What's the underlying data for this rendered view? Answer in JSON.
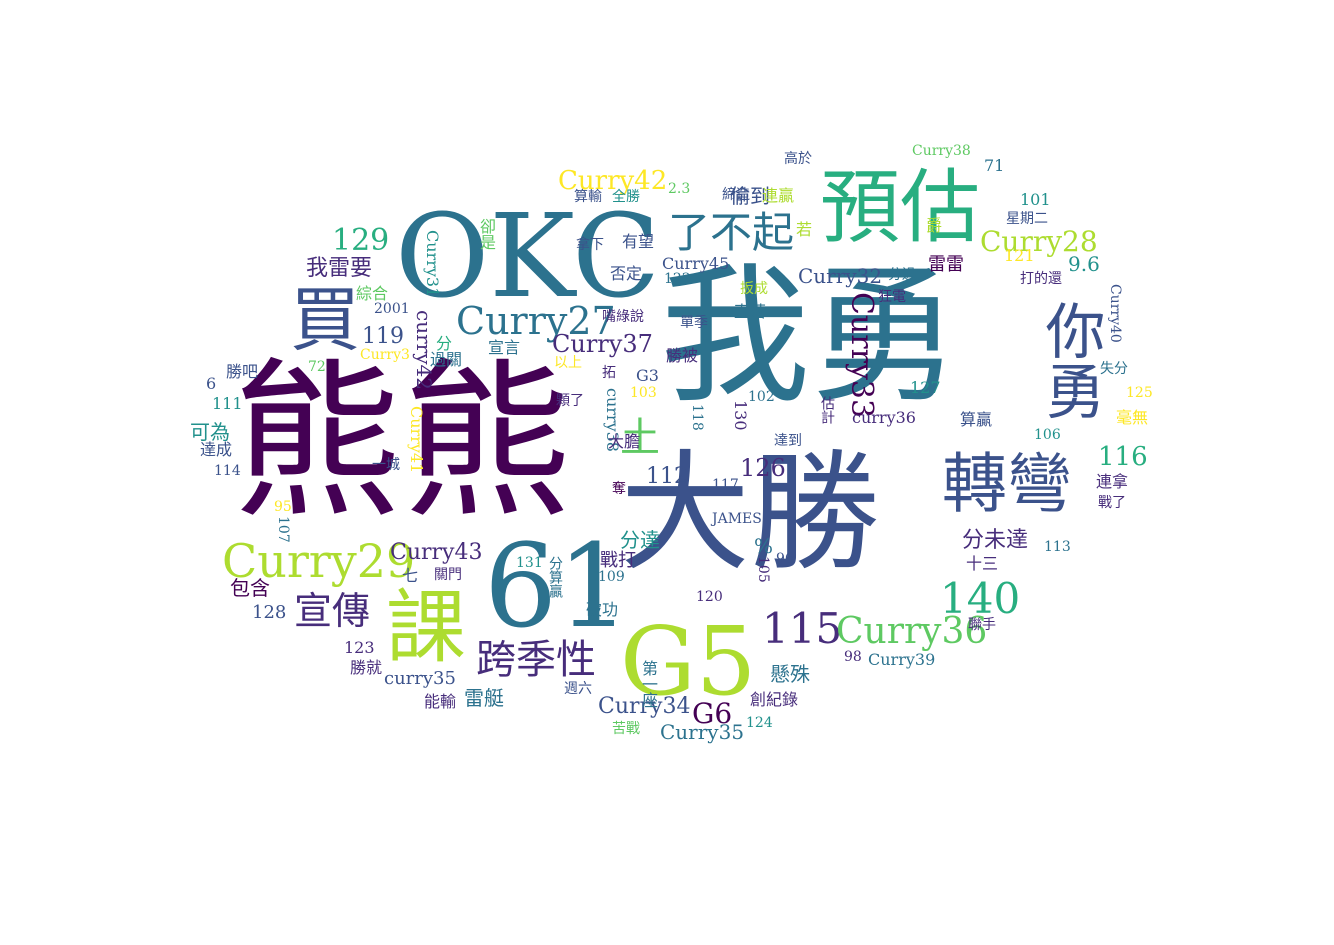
{
  "words": [
    {
      "text": "熊熊",
      "size": 170
    },
    {
      "text": "我勇",
      "size": 150
    },
    {
      "text": "大勝",
      "size": 130
    },
    {
      "text": "OKC",
      "size": 115
    },
    {
      "text": "61",
      "size": 115
    },
    {
      "text": "預估",
      "size": 80
    },
    {
      "text": "G5",
      "size": 95
    },
    {
      "text": "課",
      "size": 80
    },
    {
      "text": "轉彎",
      "size": 65
    },
    {
      "text": "你勇",
      "size": 60
    },
    {
      "text": "買",
      "size": 70
    },
    {
      "text": "Curry29",
      "size": 46
    },
    {
      "text": "Curry27",
      "size": 38
    },
    {
      "text": "140",
      "size": 42
    },
    {
      "text": "115",
      "size": 42
    },
    {
      "text": "了不起",
      "size": 42
    },
    {
      "text": "Curry36",
      "size": 36
    },
    {
      "text": "Curry28",
      "size": 28
    },
    {
      "text": "Curry42",
      "size": 26
    },
    {
      "text": "跨季性",
      "size": 40
    },
    {
      "text": "宣傳",
      "size": 38
    },
    {
      "text": "Curry33",
      "size": 30
    },
    {
      "text": "Curry37",
      "size": 24
    },
    {
      "text": "Curry43",
      "size": 22
    },
    {
      "text": "Curry32",
      "size": 20
    },
    {
      "text": "Curry34",
      "size": 22
    },
    {
      "text": "Curry35",
      "size": 20
    },
    {
      "text": "G6",
      "size": 28
    },
    {
      "text": "129",
      "size": 30
    },
    {
      "text": "126",
      "size": 24
    },
    {
      "text": "116",
      "size": 26
    },
    {
      "text": "119",
      "size": 22
    },
    {
      "text": "112",
      "size": 22
    },
    {
      "text": "我雷要",
      "size": 22
    },
    {
      "text": "分未達",
      "size": 22
    },
    {
      "text": "偷到",
      "size": 20
    },
    {
      "text": "土",
      "size": 40
    },
    {
      "text": "懸殊",
      "size": 20
    },
    {
      "text": "雷艇",
      "size": 20
    },
    {
      "text": "雷雷",
      "size": 18
    },
    {
      "text": "curry35",
      "size": 18
    },
    {
      "text": "curry36",
      "size": 16
    },
    {
      "text": "curry38",
      "size": 16
    },
    {
      "text": "curry42",
      "size": 20
    },
    {
      "text": "Curry41",
      "size": 16
    },
    {
      "text": "Curry31",
      "size": 16
    },
    {
      "text": "Curry40",
      "size": 14
    },
    {
      "text": "Curry45",
      "size": 16
    },
    {
      "text": "Curry39",
      "size": 16
    },
    {
      "text": "Curry38",
      "size": 14
    },
    {
      "text": "Curry3",
      "size": 14
    },
    {
      "text": "9.6",
      "size": 20
    },
    {
      "text": "101",
      "size": 16
    },
    {
      "text": "121",
      "size": 16
    },
    {
      "text": "71",
      "size": 16
    },
    {
      "text": "星期二",
      "size": 14
    },
    {
      "text": "打的還",
      "size": 14
    },
    {
      "text": "失分",
      "size": 14
    },
    {
      "text": "125",
      "size": 14
    },
    {
      "text": "毫無",
      "size": 16
    },
    {
      "text": "106",
      "size": 14
    },
    {
      "text": "連拿",
      "size": 16
    },
    {
      "text": "戰了",
      "size": 14
    },
    {
      "text": "113",
      "size": 14
    },
    {
      "text": "十三",
      "size": 16
    },
    {
      "text": "聯手",
      "size": 14
    },
    {
      "text": "98",
      "size": 14
    },
    {
      "text": "127",
      "size": 16
    },
    {
      "text": "算贏",
      "size": 16
    },
    {
      "text": "狂電",
      "size": 14
    },
    {
      "text": "分過",
      "size": 14
    },
    {
      "text": "高於",
      "size": 14
    },
    {
      "text": "爵",
      "size": 16
    },
    {
      "text": "若",
      "size": 16
    },
    {
      "text": "連贏",
      "size": 16
    },
    {
      "text": "締造",
      "size": 14
    },
    {
      "text": "2.3",
      "size": 14
    },
    {
      "text": "算輸",
      "size": 14
    },
    {
      "text": "全勝",
      "size": 14
    },
    {
      "text": "拿下",
      "size": 14
    },
    {
      "text": "有望",
      "size": 16
    },
    {
      "text": "否定",
      "size": 16
    },
    {
      "text": "122",
      "size": 14
    },
    {
      "text": "扳成",
      "size": 14
    },
    {
      "text": "直落",
      "size": 16
    },
    {
      "text": "單季",
      "size": 14
    },
    {
      "text": "勝被",
      "size": 16
    },
    {
      "text": "嘴綠說",
      "size": 14
    },
    {
      "text": "宣言",
      "size": 16
    },
    {
      "text": "以上",
      "size": 14
    },
    {
      "text": "拓",
      "size": 14
    },
    {
      "text": "G3",
      "size": 16
    },
    {
      "text": "103",
      "size": 14
    },
    {
      "text": "顆了",
      "size": 14
    },
    {
      "text": "130",
      "size": 16
    },
    {
      "text": "102",
      "size": 14
    },
    {
      "text": "估計",
      "size": 14
    },
    {
      "text": "118",
      "size": 14
    },
    {
      "text": "達到",
      "size": 14
    },
    {
      "text": "大膽",
      "size": 16
    },
    {
      "text": "117",
      "size": 14
    },
    {
      "text": "JAMES",
      "size": 14
    },
    {
      "text": "%",
      "size": 20
    },
    {
      "text": "105",
      "size": 14
    },
    {
      "text": "96",
      "size": 14
    },
    {
      "text": "分達",
      "size": 20
    },
    {
      "text": "戰打",
      "size": 18
    },
    {
      "text": "131",
      "size": 14
    },
    {
      "text": "分算贏",
      "size": 14
    },
    {
      "text": "109",
      "size": 14
    },
    {
      "text": "破功",
      "size": 16
    },
    {
      "text": "120",
      "size": 14
    },
    {
      "text": "第一座",
      "size": 16
    },
    {
      "text": "週六",
      "size": 14
    },
    {
      "text": "創紀錄",
      "size": 16
    },
    {
      "text": "124",
      "size": 14
    },
    {
      "text": "苦戰",
      "size": 14
    },
    {
      "text": "綜合",
      "size": 16
    },
    {
      "text": "2001",
      "size": 14
    },
    {
      "text": "分",
      "size": 16
    },
    {
      "text": "過關",
      "size": 16
    },
    {
      "text": "勝吧",
      "size": 16
    },
    {
      "text": "72",
      "size": 14
    },
    {
      "text": "6",
      "size": 16
    },
    {
      "text": "111",
      "size": 16
    },
    {
      "text": "可為",
      "size": 20
    },
    {
      "text": "達成",
      "size": 16
    },
    {
      "text": "114",
      "size": 14
    },
    {
      "text": "一城",
      "size": 14
    },
    {
      "text": "95",
      "size": 14
    },
    {
      "text": "107",
      "size": 14
    },
    {
      "text": "包含",
      "size": 20
    },
    {
      "text": "128",
      "size": 18
    },
    {
      "text": "七",
      "size": 16
    },
    {
      "text": "關門",
      "size": 14
    },
    {
      "text": "123",
      "size": 16
    },
    {
      "text": "勝就",
      "size": 16
    },
    {
      "text": "能輸",
      "size": 16
    },
    {
      "text": "卻是",
      "size": 16
    },
    {
      "text": "奪",
      "size": 14
    }
  ]
}
